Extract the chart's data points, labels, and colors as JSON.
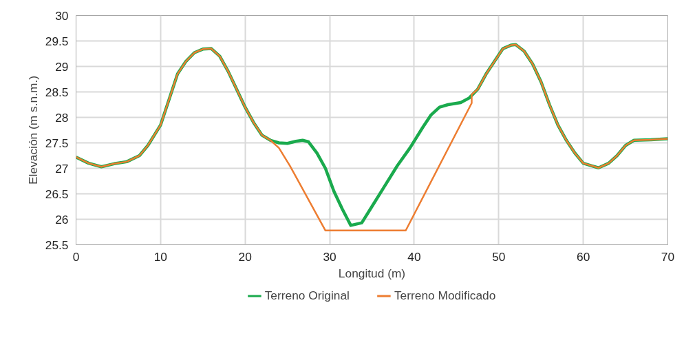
{
  "chart_data": {
    "type": "line",
    "xlabel": "Longitud (m)",
    "ylabel": "Elevación (m s.n.m.)",
    "xlim": [
      0,
      70
    ],
    "xticks": [
      0,
      10,
      20,
      30,
      40,
      50,
      60,
      70
    ],
    "ylim": [
      25.5,
      30
    ],
    "yticks": [
      25.5,
      26,
      26.5,
      27,
      27.5,
      28,
      28.5,
      29,
      29.5,
      30
    ],
    "grid": true,
    "legend": "bottom",
    "line_style": "solid",
    "series": [
      {
        "name": "Terreno Original",
        "color": "#1aaa4d",
        "x": [
          0,
          1.5,
          3,
          4.5,
          6,
          7.5,
          8.5,
          10,
          11,
          12,
          13,
          14,
          15,
          16,
          17,
          18,
          19,
          20,
          21,
          22,
          23,
          24,
          25,
          26,
          26.8,
          27.5,
          28.5,
          29.5,
          30.5,
          31.5,
          32.5,
          33.8,
          35,
          36.5,
          38,
          39.5,
          41,
          42,
          43,
          44,
          45.5,
          46.5,
          47.5,
          48.5,
          49.5,
          50.5,
          51.5,
          52,
          53,
          54,
          55,
          56,
          57,
          58,
          59,
          60,
          61,
          61.8,
          63,
          64,
          65,
          66,
          68,
          70
        ],
        "values": [
          27.22,
          27.1,
          27.03,
          27.09,
          27.13,
          27.25,
          27.45,
          27.85,
          28.35,
          28.85,
          29.1,
          29.27,
          29.34,
          29.35,
          29.2,
          28.9,
          28.55,
          28.2,
          27.9,
          27.65,
          27.55,
          27.5,
          27.49,
          27.53,
          27.55,
          27.52,
          27.3,
          27.0,
          26.55,
          26.2,
          25.88,
          25.93,
          26.25,
          26.65,
          27.05,
          27.4,
          27.8,
          28.05,
          28.2,
          28.25,
          28.29,
          28.38,
          28.55,
          28.85,
          29.1,
          29.35,
          29.42,
          29.43,
          29.3,
          29.05,
          28.7,
          28.25,
          27.85,
          27.55,
          27.3,
          27.1,
          27.05,
          27.01,
          27.1,
          27.25,
          27.45,
          27.55,
          27.56,
          27.58
        ]
      },
      {
        "name": "Terreno Modificado",
        "color": "#ed7d31",
        "x": [
          0,
          1.5,
          3,
          4.5,
          6,
          7.5,
          8.5,
          10,
          11,
          12,
          13,
          14,
          15,
          16,
          17,
          18,
          19,
          20,
          21,
          22,
          23,
          24,
          25.3,
          29.5,
          39,
          46.8,
          46.8,
          47.5,
          48.5,
          49.5,
          50.5,
          51.5,
          52,
          53,
          54,
          55,
          56,
          57,
          58,
          59,
          60,
          61,
          61.8,
          63,
          64,
          65,
          66,
          68,
          70
        ],
        "values": [
          27.22,
          27.1,
          27.03,
          27.09,
          27.13,
          27.25,
          27.45,
          27.85,
          28.35,
          28.85,
          29.1,
          29.27,
          29.34,
          29.35,
          29.2,
          28.9,
          28.55,
          28.2,
          27.9,
          27.65,
          27.55,
          27.4,
          27.05,
          25.78,
          25.78,
          28.28,
          28.45,
          28.55,
          28.85,
          29.1,
          29.35,
          29.42,
          29.43,
          29.3,
          29.05,
          28.7,
          28.25,
          27.85,
          27.55,
          27.3,
          27.1,
          27.05,
          27.01,
          27.1,
          27.25,
          27.45,
          27.55,
          27.56,
          27.58
        ]
      }
    ]
  }
}
